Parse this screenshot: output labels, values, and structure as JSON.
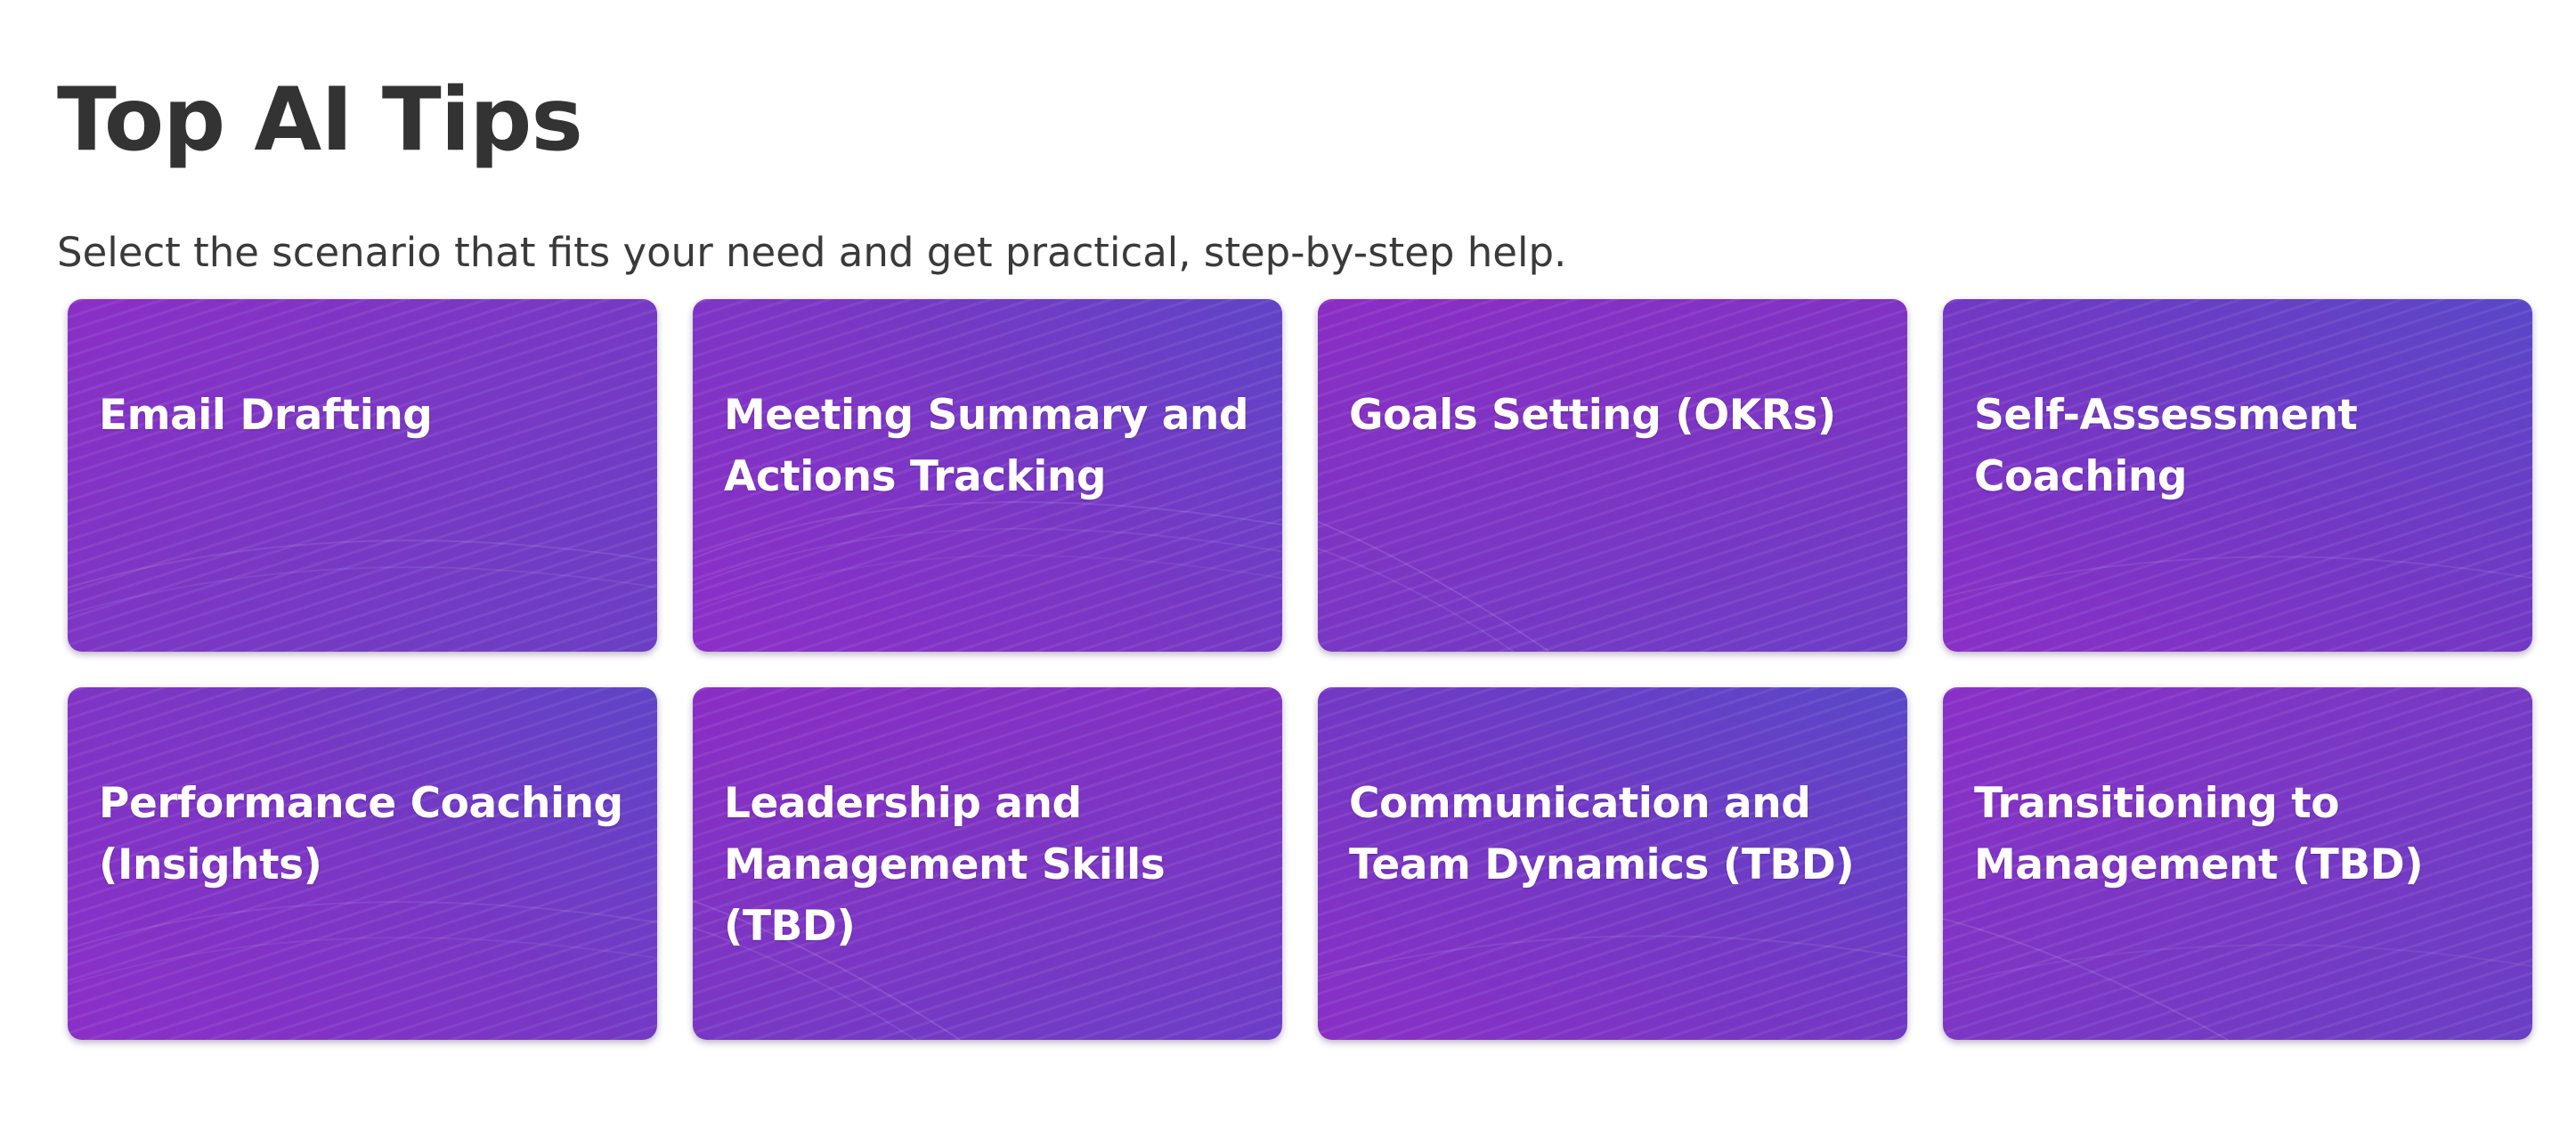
{
  "header": {
    "title": "Top AI Tips",
    "subtitle": "Select the scenario that fits your need and get practical, step-by-step help."
  },
  "cards": [
    {
      "label": "Email Drafting"
    },
    {
      "label": "Meeting Summary and Actions Tracking"
    },
    {
      "label": "Goals Setting (OKRs)"
    },
    {
      "label": "Self-Assessment Coaching"
    },
    {
      "label": "Performance Coaching (Insights)"
    },
    {
      "label": "Leadership and Management Skills (TBD)"
    },
    {
      "label": "Communication and Team Dynamics (TBD)"
    },
    {
      "label": "Transitioning to Management (TBD)"
    }
  ],
  "colors": {
    "card_primary": "#8a2fc6",
    "card_secondary": "#6a3fc4",
    "title_text": "#333333",
    "card_text": "#ffffff"
  }
}
